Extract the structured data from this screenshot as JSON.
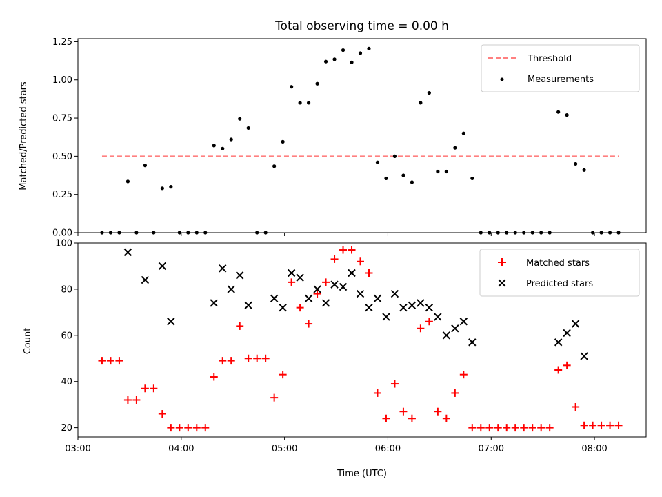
{
  "chart_data": [
    {
      "type": "scatter",
      "title": "Total observing time = 0.00 h",
      "xlabel": "",
      "ylabel": "Matched/Predicted stars",
      "xlim": [
        "03:00",
        "08:30"
      ],
      "ylim": [
        0,
        1.27
      ],
      "yticks": [
        0.0,
        0.25,
        0.5,
        0.75,
        1.0,
        1.25
      ],
      "ytick_labels": [
        "0.00",
        "0.25",
        "0.50",
        "0.75",
        "1.00",
        "1.25"
      ],
      "legend_position": "top-right",
      "legend": [
        "Threshold",
        "Measurements"
      ],
      "threshold": {
        "name": "Threshold",
        "value": 0.5,
        "color": "#ff8080",
        "x_range": [
          "03:14",
          "08:14"
        ]
      },
      "series": [
        {
          "name": "Measurements",
          "marker": "dot",
          "color": "#000000",
          "points": [
            [
              "03:14",
              0
            ],
            [
              "03:19",
              0
            ],
            [
              "03:24",
              0
            ],
            [
              "03:29",
              0.335
            ],
            [
              "03:34",
              0
            ],
            [
              "03:39",
              0.44
            ],
            [
              "03:44",
              0
            ],
            [
              "03:49",
              0.29
            ],
            [
              "03:54",
              0.3
            ],
            [
              "03:59",
              0
            ],
            [
              "04:04",
              0
            ],
            [
              "04:09",
              0
            ],
            [
              "04:14",
              0
            ],
            [
              "04:19",
              0.57
            ],
            [
              "04:24",
              0.55
            ],
            [
              "04:29",
              0.61
            ],
            [
              "04:34",
              0.745
            ],
            [
              "04:39",
              0.685
            ],
            [
              "04:44",
              0
            ],
            [
              "04:49",
              0
            ],
            [
              "04:54",
              0.435
            ],
            [
              "04:59",
              0.595
            ],
            [
              "05:04",
              0.955
            ],
            [
              "05:09",
              0.85
            ],
            [
              "05:14",
              0.85
            ],
            [
              "05:19",
              0.975
            ],
            [
              "05:24",
              1.12
            ],
            [
              "05:29",
              1.135
            ],
            [
              "05:34",
              1.195
            ],
            [
              "05:39",
              1.115
            ],
            [
              "05:44",
              1.175
            ],
            [
              "05:49",
              1.205
            ],
            [
              "05:54",
              0.46
            ],
            [
              "05:59",
              0.355
            ],
            [
              "06:04",
              0.5
            ],
            [
              "06:09",
              0.375
            ],
            [
              "06:14",
              0.33
            ],
            [
              "06:19",
              0.85
            ],
            [
              "06:24",
              0.915
            ],
            [
              "06:29",
              0.4
            ],
            [
              "06:34",
              0.4
            ],
            [
              "06:39",
              0.555
            ],
            [
              "06:44",
              0.65
            ],
            [
              "06:49",
              0.355
            ],
            [
              "06:54",
              0
            ],
            [
              "06:59",
              0
            ],
            [
              "07:04",
              0
            ],
            [
              "07:09",
              0
            ],
            [
              "07:14",
              0
            ],
            [
              "07:19",
              0
            ],
            [
              "07:24",
              0
            ],
            [
              "07:29",
              0
            ],
            [
              "07:34",
              0
            ],
            [
              "07:39",
              0.79
            ],
            [
              "07:44",
              0.77
            ],
            [
              "07:49",
              0.45
            ],
            [
              "07:54",
              0.41
            ],
            [
              "07:59",
              0
            ],
            [
              "08:04",
              0
            ],
            [
              "08:09",
              0
            ],
            [
              "08:14",
              0
            ]
          ]
        }
      ]
    },
    {
      "type": "scatter",
      "title": "",
      "xlabel": "Time (UTC)",
      "ylabel": "Count",
      "xlim": [
        "03:00",
        "08:30"
      ],
      "xticks": [
        "03:00",
        "04:00",
        "05:00",
        "06:00",
        "07:00",
        "08:00"
      ],
      "ylim": [
        16,
        100
      ],
      "yticks": [
        20,
        40,
        60,
        80,
        100
      ],
      "legend_position": "top-right",
      "legend": [
        "Matched stars",
        "Predicted stars"
      ],
      "series": [
        {
          "name": "Matched stars",
          "marker": "+",
          "color": "#ff0000",
          "points": [
            [
              "03:14",
              49
            ],
            [
              "03:19",
              49
            ],
            [
              "03:24",
              49
            ],
            [
              "03:29",
              32
            ],
            [
              "03:34",
              32
            ],
            [
              "03:39",
              37
            ],
            [
              "03:44",
              37
            ],
            [
              "03:49",
              26
            ],
            [
              "03:54",
              20
            ],
            [
              "03:59",
              20
            ],
            [
              "04:04",
              20
            ],
            [
              "04:09",
              20
            ],
            [
              "04:14",
              20
            ],
            [
              "04:19",
              42
            ],
            [
              "04:24",
              49
            ],
            [
              "04:29",
              49
            ],
            [
              "04:34",
              64
            ],
            [
              "04:39",
              50
            ],
            [
              "04:44",
              50
            ],
            [
              "04:49",
              50
            ],
            [
              "04:54",
              33
            ],
            [
              "04:59",
              43
            ],
            [
              "05:04",
              83
            ],
            [
              "05:09",
              72
            ],
            [
              "05:14",
              65
            ],
            [
              "05:19",
              78
            ],
            [
              "05:24",
              83
            ],
            [
              "05:29",
              93
            ],
            [
              "05:34",
              97
            ],
            [
              "05:39",
              97
            ],
            [
              "05:44",
              92
            ],
            [
              "05:49",
              87
            ],
            [
              "05:54",
              35
            ],
            [
              "05:59",
              24
            ],
            [
              "06:04",
              39
            ],
            [
              "06:09",
              27
            ],
            [
              "06:14",
              24
            ],
            [
              "06:19",
              63
            ],
            [
              "06:24",
              66
            ],
            [
              "06:29",
              27
            ],
            [
              "06:34",
              24
            ],
            [
              "06:39",
              35
            ],
            [
              "06:44",
              43
            ],
            [
              "06:49",
              20
            ],
            [
              "06:54",
              20
            ],
            [
              "06:59",
              20
            ],
            [
              "07:04",
              20
            ],
            [
              "07:09",
              20
            ],
            [
              "07:14",
              20
            ],
            [
              "07:19",
              20
            ],
            [
              "07:24",
              20
            ],
            [
              "07:29",
              20
            ],
            [
              "07:34",
              20
            ],
            [
              "07:39",
              45
            ],
            [
              "07:44",
              47
            ],
            [
              "07:49",
              29
            ],
            [
              "07:54",
              21
            ],
            [
              "07:59",
              21
            ],
            [
              "08:04",
              21
            ],
            [
              "08:09",
              21
            ],
            [
              "08:14",
              21
            ]
          ]
        },
        {
          "name": "Predicted stars",
          "marker": "x",
          "color": "#000000",
          "points": [
            [
              "03:29",
              96
            ],
            [
              "03:39",
              84
            ],
            [
              "03:49",
              90
            ],
            [
              "03:54",
              66
            ],
            [
              "04:19",
              74
            ],
            [
              "04:24",
              89
            ],
            [
              "04:29",
              80
            ],
            [
              "04:34",
              86
            ],
            [
              "04:39",
              73
            ],
            [
              "04:54",
              76
            ],
            [
              "04:59",
              72
            ],
            [
              "05:04",
              87
            ],
            [
              "05:09",
              85
            ],
            [
              "05:14",
              76
            ],
            [
              "05:19",
              80
            ],
            [
              "05:24",
              74
            ],
            [
              "05:29",
              82
            ],
            [
              "05:34",
              81
            ],
            [
              "05:39",
              87
            ],
            [
              "05:44",
              78
            ],
            [
              "05:49",
              72
            ],
            [
              "05:54",
              76
            ],
            [
              "05:59",
              68
            ],
            [
              "06:04",
              78
            ],
            [
              "06:09",
              72
            ],
            [
              "06:14",
              73
            ],
            [
              "06:19",
              74
            ],
            [
              "06:24",
              72
            ],
            [
              "06:29",
              68
            ],
            [
              "06:34",
              60
            ],
            [
              "06:39",
              63
            ],
            [
              "06:44",
              66
            ],
            [
              "06:49",
              57
            ],
            [
              "07:39",
              57
            ],
            [
              "07:44",
              61
            ],
            [
              "07:49",
              65
            ],
            [
              "07:54",
              51
            ]
          ]
        }
      ]
    }
  ]
}
